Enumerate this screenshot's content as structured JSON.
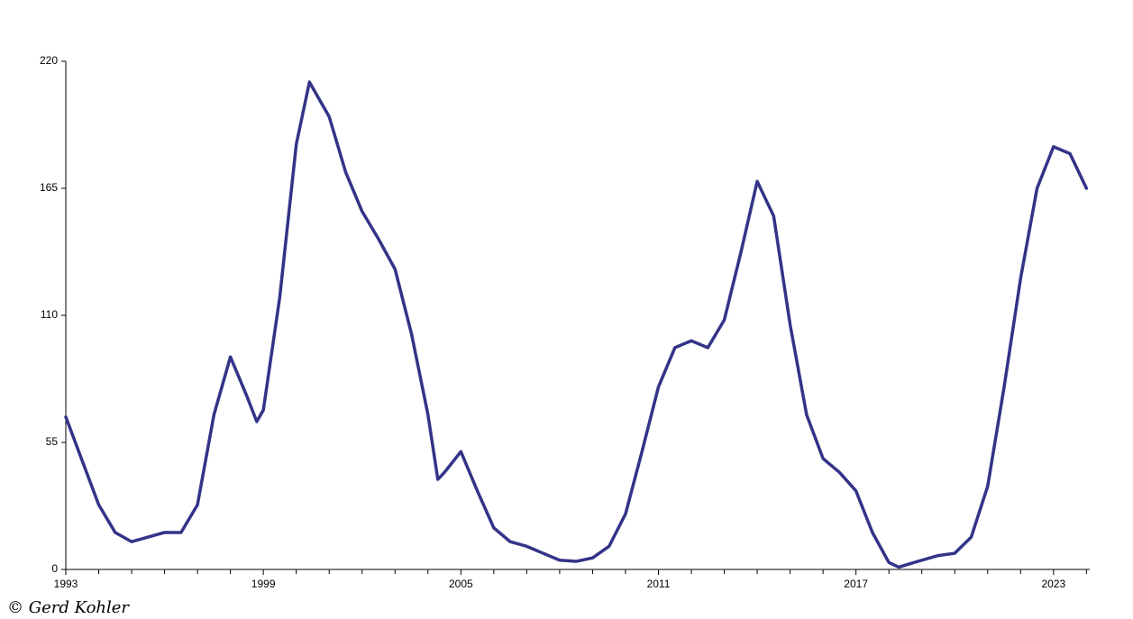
{
  "chart_data": {
    "type": "line",
    "credit": "© Gerd Kohler",
    "x": [
      1993,
      1994,
      1994.5,
      1995,
      1995.5,
      1996,
      1996.5,
      1997,
      1997.5,
      1998,
      1998.5,
      1998.8,
      1999,
      1999.5,
      2000,
      2000.4,
      2001,
      2001.5,
      2002,
      2002.5,
      2003,
      2003.5,
      2004,
      2004.3,
      2004.5,
      2005,
      2005.5,
      2006,
      2006.5,
      2007,
      2007.5,
      2008,
      2008.5,
      2009,
      2009.5,
      2010,
      2010.5,
      2011,
      2011.5,
      2012,
      2012.5,
      2013,
      2013.5,
      2014,
      2014.5,
      2015,
      2015.5,
      2016,
      2016.5,
      2017,
      2017.5,
      2018,
      2018.3,
      2019,
      2019.5,
      2020,
      2020.5,
      2021,
      2021.5,
      2022,
      2022.5,
      2023,
      2023.5,
      2024
    ],
    "series": [
      {
        "color": "#333388",
        "values": [
          66,
          28,
          16,
          12,
          14,
          16,
          16,
          28,
          67,
          92,
          75,
          64,
          69,
          118,
          184,
          211,
          196,
          172,
          155,
          143,
          130,
          102,
          67,
          39,
          42,
          51,
          34,
          18,
          12,
          10,
          7,
          4,
          3.5,
          5,
          10,
          24,
          51,
          79,
          96,
          99,
          96,
          108,
          137,
          168,
          153,
          106,
          67,
          48,
          42,
          34,
          16,
          3,
          1,
          4,
          6,
          7,
          14,
          36,
          79,
          126,
          165,
          183,
          180,
          165
        ]
      }
    ],
    "xlim": [
      1993,
      2024.1
    ],
    "xticks": [
      1993,
      1999,
      2005,
      2011,
      2017,
      2023
    ],
    "xminorticks": [
      1994,
      1995,
      1996,
      1997,
      1998,
      2000,
      2001,
      2002,
      2003,
      2004,
      2006,
      2007,
      2008,
      2009,
      2010,
      2012,
      2013,
      2014,
      2015,
      2016,
      2018,
      2019,
      2020,
      2021,
      2022,
      2024
    ],
    "ylim": [
      0,
      220
    ],
    "yticks": [
      0,
      55,
      110,
      165,
      220
    ],
    "grid": false
  }
}
